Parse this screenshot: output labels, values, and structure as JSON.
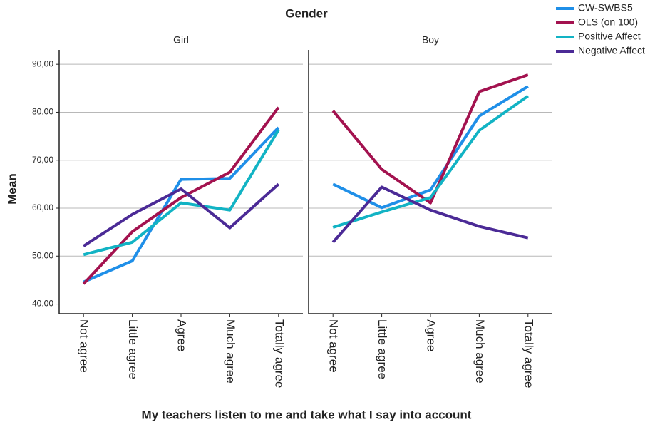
{
  "chart_data": {
    "type": "line",
    "title": "Gender",
    "xlabel": "My teachers listen to me and take what I say into account",
    "ylabel": "Mean",
    "categories": [
      "Not agree",
      "Little agree",
      "Agree",
      "Much agree",
      "Totally agree"
    ],
    "ylim": [
      38,
      93
    ],
    "yticks": [
      {
        "value": 40,
        "label": "40,00"
      },
      {
        "value": 50,
        "label": "50,00"
      },
      {
        "value": 60,
        "label": "60,00"
      },
      {
        "value": 70,
        "label": "70,00"
      },
      {
        "value": 80,
        "label": "80,00"
      },
      {
        "value": 90,
        "label": "90,00"
      }
    ],
    "grid": true,
    "legend": "top-right",
    "series": [
      {
        "name": "CW-SWBS5",
        "color": "#1f8fe8"
      },
      {
        "name": "OLS (on 100)",
        "color": "#a3124f"
      },
      {
        "name": "Positive Affect",
        "color": "#12b3c4"
      },
      {
        "name": "Negative Affect",
        "color": "#4b2a96"
      }
    ],
    "panels": [
      {
        "title": "Girl",
        "values": [
          [
            44.6,
            49.0,
            66.0,
            66.2,
            76.8
          ],
          [
            44.2,
            55.1,
            62.2,
            67.5,
            81.0
          ],
          [
            50.3,
            52.9,
            61.1,
            59.6,
            76.3
          ],
          [
            52.1,
            58.7,
            64.0,
            55.9,
            65.0
          ]
        ]
      },
      {
        "title": "Boy",
        "values": [
          [
            65.0,
            60.1,
            63.8,
            79.2,
            85.4
          ],
          [
            80.3,
            68.1,
            61.1,
            84.3,
            87.8
          ],
          [
            56.0,
            59.2,
            62.2,
            76.2,
            83.4
          ],
          [
            52.9,
            64.4,
            59.6,
            56.2,
            53.8
          ]
        ]
      }
    ]
  }
}
